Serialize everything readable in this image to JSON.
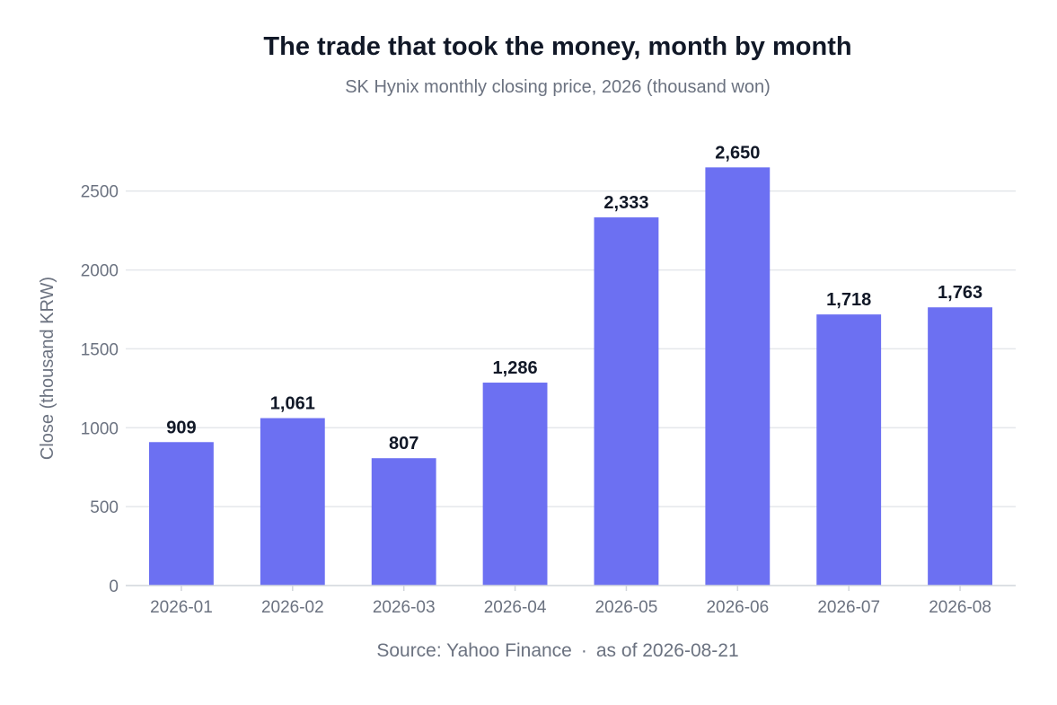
{
  "header": {
    "title": "The trade that took the money, month by month",
    "subtitle": "SK Hynix monthly closing price, 2026 (thousand won)"
  },
  "footer": {
    "source": "Source: Yahoo Finance",
    "separator": "·",
    "as_of": "as of 2026-08-21"
  },
  "colors": {
    "bar": "#6c70f2",
    "grid": "#e5e7eb",
    "axis": "#d1d5db"
  },
  "chart_data": {
    "type": "bar",
    "title": "The trade that took the money, month by month",
    "subtitle": "SK Hynix monthly closing price, 2026 (thousand won)",
    "xlabel": "",
    "ylabel": "Close (thousand KRW)",
    "categories": [
      "2026-01",
      "2026-02",
      "2026-03",
      "2026-04",
      "2026-05",
      "2026-06",
      "2026-07",
      "2026-08"
    ],
    "values": [
      909,
      1061,
      807,
      1286,
      2333,
      2650,
      1718,
      1763
    ],
    "value_labels": [
      "909",
      "1,061",
      "807",
      "1,286",
      "2,333",
      "2,650",
      "1,718",
      "1,763"
    ],
    "yticks": [
      0,
      500,
      1000,
      1500,
      2000,
      2500
    ],
    "ylim": [
      0,
      2800
    ],
    "grid": true,
    "legend": "none"
  }
}
